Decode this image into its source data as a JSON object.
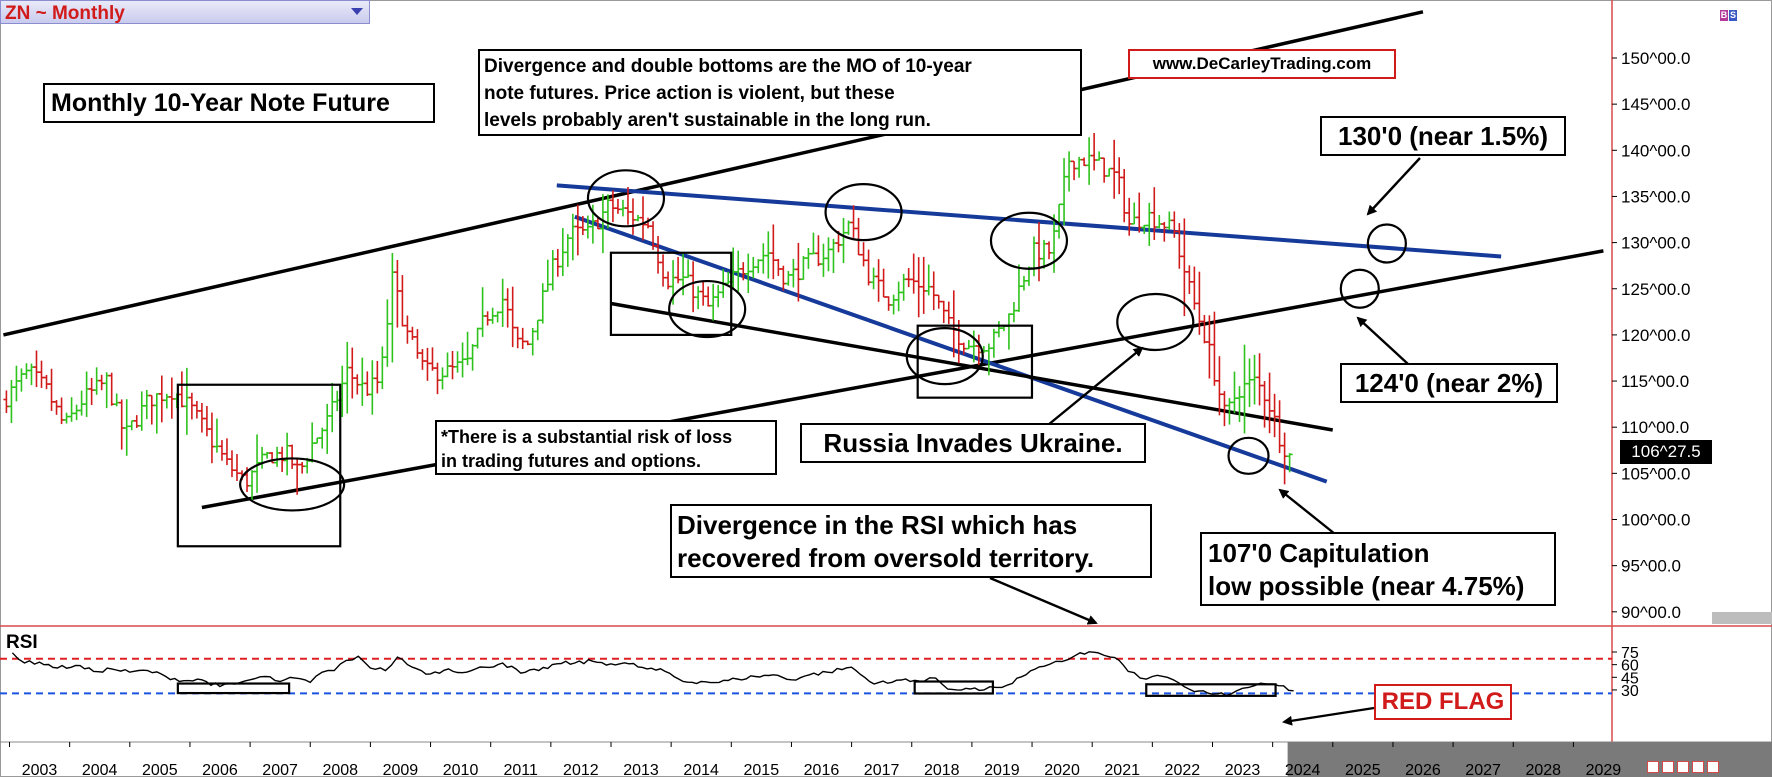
{
  "symbol_label": "ZN ~ Monthly",
  "brand_url": "www.DeCarleyTrading.com",
  "last_price": "106^27.5",
  "rsi_label": "RSI",
  "red_flag": "RED FLAG",
  "colors": {
    "up_bar": "#2ec21c",
    "down_bar": "#d11a1a",
    "trendline_blue": "#163a9a",
    "trendline_black": "#000000",
    "rsi_overbought_line": "#e02020",
    "rsi_oversold_line": "#1a55e0",
    "future_axis_bg": "#7a7a7a",
    "divider_red": "#d84a4a"
  },
  "annotations": {
    "title_box": "Monthly 10-Year Note Future",
    "mo_box": "Divergence and double bottoms are the MO of 10-year\n note futures. Price action is violent, but these\nlevels probably aren't sustainable in the long run.",
    "risk_box": "*There is a substantial risk of loss\nin trading futures and options.",
    "russia_box": "Russia Invades Ukraine.",
    "rsi_div_box": "Divergence in the RSI which has\nrecovered from oversold territory.",
    "capitulation_box": "107'0 Capitulation\nlow possible (near 4.75%)",
    "target_130_box": "130'0 (near 1.5%)",
    "target_124_box": "124'0 (near 2%)"
  },
  "chart_data": [
    {
      "type": "bar",
      "ohlc": true,
      "x_tick_labels": [
        "2003",
        "2004",
        "2005",
        "2006",
        "2007",
        "2008",
        "2009",
        "2010",
        "2011",
        "2012",
        "2013",
        "2014",
        "2015",
        "2016",
        "2017",
        "2018",
        "2019",
        "2020",
        "2021",
        "2022",
        "2023",
        "2024",
        "2025",
        "2026",
        "2027",
        "2028",
        "2029"
      ],
      "y_tick_labels": [
        "150^00.0",
        "145^00.0",
        "140^00.0",
        "135^00.0",
        "130^00.0",
        "125^00.0",
        "120^00.0",
        "115^00.0",
        "110^00.0",
        "105^00.0",
        "100^00.0",
        "95^00.0",
        "90^00.0"
      ],
      "ylim": [
        88,
        155
      ],
      "xlim": [
        2002.4,
        2029.6
      ],
      "grid": false,
      "last_value": 106.86,
      "price_path": [
        [
          2002.5,
          113
        ],
        [
          2002.9,
          116
        ],
        [
          2003.2,
          114
        ],
        [
          2003.5,
          110
        ],
        [
          2003.8,
          113
        ],
        [
          2004.2,
          115
        ],
        [
          2004.5,
          109
        ],
        [
          2004.9,
          113
        ],
        [
          2005.3,
          114
        ],
        [
          2005.6,
          112
        ],
        [
          2005.9,
          109
        ],
        [
          2006.2,
          106
        ],
        [
          2006.5,
          104
        ],
        [
          2006.9,
          107
        ],
        [
          2007.2,
          107
        ],
        [
          2007.4,
          105
        ],
        [
          2007.6,
          108
        ],
        [
          2007.9,
          111
        ],
        [
          2008.2,
          116
        ],
        [
          2008.5,
          114
        ],
        [
          2008.75,
          115
        ],
        [
          2008.95,
          126
        ],
        [
          2009.2,
          120
        ],
        [
          2009.5,
          116
        ],
        [
          2009.9,
          116
        ],
        [
          2010.2,
          117
        ],
        [
          2010.5,
          122
        ],
        [
          2010.8,
          124
        ],
        [
          2011.0,
          119
        ],
        [
          2011.2,
          119
        ],
        [
          2011.6,
          127
        ],
        [
          2011.9,
          131
        ],
        [
          2012.2,
          131
        ],
        [
          2012.55,
          134
        ],
        [
          2012.9,
          133
        ],
        [
          2013.2,
          132
        ],
        [
          2013.5,
          126
        ],
        [
          2013.8,
          126
        ],
        [
          2014.2,
          123
        ],
        [
          2014.6,
          126
        ],
        [
          2014.9,
          128
        ],
        [
          2015.2,
          129
        ],
        [
          2015.5,
          126
        ],
        [
          2015.9,
          128
        ],
        [
          2016.2,
          129
        ],
        [
          2016.55,
          132
        ],
        [
          2016.9,
          126
        ],
        [
          2017.2,
          124
        ],
        [
          2017.5,
          126
        ],
        [
          2017.9,
          125
        ],
        [
          2018.2,
          121
        ],
        [
          2018.5,
          119
        ],
        [
          2018.9,
          119
        ],
        [
          2019.2,
          122
        ],
        [
          2019.6,
          129
        ],
        [
          2019.9,
          129
        ],
        [
          2020.2,
          139
        ],
        [
          2020.5,
          139
        ],
        [
          2020.8,
          138
        ],
        [
          2021.0,
          137
        ],
        [
          2021.2,
          132
        ],
        [
          2021.5,
          133
        ],
        [
          2021.8,
          132
        ],
        [
          2021.95,
          131
        ],
        [
          2022.2,
          125
        ],
        [
          2022.5,
          119
        ],
        [
          2022.8,
          111
        ],
        [
          2023.0,
          114
        ],
        [
          2023.3,
          115
        ],
        [
          2023.5,
          113
        ],
        [
          2023.7,
          109
        ],
        [
          2023.85,
          106.86
        ]
      ],
      "trendlines": [
        {
          "color": "black",
          "points": [
            [
              2002.4,
              120
            ],
            [
              2026.0,
              155
            ]
          ]
        },
        {
          "color": "black",
          "points": [
            [
              2005.7,
              101.3
            ],
            [
              2029.0,
              129.1
            ]
          ]
        },
        {
          "color": "blue",
          "points": [
            [
              2011.6,
              136.2
            ],
            [
              2027.3,
              128.5
            ]
          ]
        },
        {
          "color": "blue",
          "points": [
            [
              2011.9,
              132.8
            ],
            [
              2024.4,
              104.1
            ]
          ]
        },
        {
          "color": "black",
          "points": [
            [
              2012.5,
              123.4
            ],
            [
              2024.5,
              109.7
            ]
          ]
        }
      ],
      "circles": [
        [
          2007.2,
          103.8
        ],
        [
          2012.75,
          134.8
        ],
        [
          2014.1,
          122.8
        ],
        [
          2016.7,
          133.3
        ],
        [
          2018.05,
          117.7
        ],
        [
          2019.45,
          130.2
        ],
        [
          2021.55,
          121.4
        ],
        [
          2023.1,
          106.9
        ],
        [
          2024.95,
          125.0
        ],
        [
          2025.4,
          129.9
        ]
      ],
      "boxes": [
        [
          2005.3,
          2008.0,
          97.1,
          114.6
        ],
        [
          2012.5,
          2014.5,
          120.0,
          128.9
        ],
        [
          2017.6,
          2019.5,
          113.2,
          121.0
        ]
      ]
    },
    {
      "type": "line",
      "title": "RSI",
      "y_tick_labels": [
        "75",
        "60",
        "45",
        "30"
      ],
      "ylim": [
        20,
        80
      ],
      "overbought": 67,
      "oversold": 26,
      "values": [
        [
          2002.55,
          74
        ],
        [
          2002.75,
          62
        ],
        [
          2003.0,
          63
        ],
        [
          2003.3,
          56
        ],
        [
          2003.6,
          59
        ],
        [
          2003.9,
          52
        ],
        [
          2004.2,
          55
        ],
        [
          2004.5,
          51
        ],
        [
          2004.8,
          53
        ],
        [
          2005.1,
          46
        ],
        [
          2005.4,
          41
        ],
        [
          2005.7,
          42
        ],
        [
          2006.0,
          34
        ],
        [
          2006.25,
          37
        ],
        [
          2006.5,
          42
        ],
        [
          2006.75,
          46
        ],
        [
          2007.0,
          40
        ],
        [
          2007.25,
          44
        ],
        [
          2007.5,
          39
        ],
        [
          2007.7,
          51
        ],
        [
          2007.9,
          53
        ],
        [
          2008.1,
          65
        ],
        [
          2008.3,
          70
        ],
        [
          2008.5,
          56
        ],
        [
          2008.75,
          53
        ],
        [
          2008.95,
          69
        ],
        [
          2009.2,
          57
        ],
        [
          2009.5,
          49
        ],
        [
          2009.8,
          55
        ],
        [
          2010.1,
          51
        ],
        [
          2010.4,
          57
        ],
        [
          2010.7,
          62
        ],
        [
          2011.0,
          50
        ],
        [
          2011.3,
          53
        ],
        [
          2011.6,
          61
        ],
        [
          2011.9,
          62
        ],
        [
          2012.2,
          64
        ],
        [
          2012.5,
          61
        ],
        [
          2012.8,
          61
        ],
        [
          2013.1,
          55
        ],
        [
          2013.4,
          52
        ],
        [
          2013.7,
          40
        ],
        [
          2014.0,
          40
        ],
        [
          2014.3,
          39
        ],
        [
          2014.6,
          43
        ],
        [
          2014.9,
          46
        ],
        [
          2015.2,
          48
        ],
        [
          2015.5,
          42
        ],
        [
          2015.8,
          48
        ],
        [
          2016.1,
          51
        ],
        [
          2016.5,
          57
        ],
        [
          2016.8,
          40
        ],
        [
          2017.1,
          38
        ],
        [
          2017.4,
          43
        ],
        [
          2017.7,
          40
        ],
        [
          2017.9,
          44
        ],
        [
          2018.1,
          31
        ],
        [
          2018.4,
          32
        ],
        [
          2018.7,
          30
        ],
        [
          2018.9,
          33
        ],
        [
          2019.1,
          36
        ],
        [
          2019.4,
          48
        ],
        [
          2019.7,
          58
        ],
        [
          2019.9,
          64
        ],
        [
          2020.1,
          66
        ],
        [
          2020.3,
          74
        ],
        [
          2020.6,
          74
        ],
        [
          2020.8,
          69
        ],
        [
          2020.95,
          65
        ],
        [
          2021.1,
          52
        ],
        [
          2021.3,
          44
        ],
        [
          2021.5,
          46
        ],
        [
          2021.75,
          45
        ],
        [
          2021.95,
          38
        ],
        [
          2022.2,
          28
        ],
        [
          2022.5,
          25
        ],
        [
          2022.8,
          25
        ],
        [
          2023.0,
          32
        ],
        [
          2023.2,
          35
        ],
        [
          2023.4,
          37
        ],
        [
          2023.6,
          35
        ],
        [
          2023.85,
          29
        ]
      ],
      "boxes": [
        [
          2005.3,
          2007.15,
          26.3,
          37.6
        ],
        [
          2017.55,
          2018.85,
          25.8,
          40.0
        ],
        [
          2021.4,
          2023.55,
          23.0,
          36.7
        ]
      ]
    }
  ]
}
